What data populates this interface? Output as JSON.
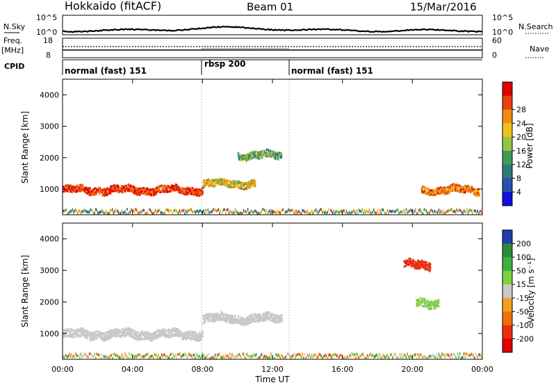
{
  "header": {
    "station": "Hokkaido (fitACF)",
    "beam": "Beam 01",
    "date": "15/Mar/2016"
  },
  "noise_panel": {
    "left_label": "N.Sky",
    "right_label": "N.Search",
    "left_ticks": [
      "10^5",
      "10^0"
    ],
    "right_ticks": [
      "10^5",
      "10^0"
    ]
  },
  "freq_panel": {
    "left_label_1": "Freq.",
    "left_label_2": "[MHz]",
    "right_label": "Nave",
    "left_ticks": [
      "18",
      "8"
    ],
    "right_ticks": [
      "60",
      "0"
    ]
  },
  "cpid": {
    "label": "CPID",
    "segments": [
      {
        "name": "normal (fast) 151",
        "start_hour": 0,
        "end_hour": 8
      },
      {
        "name": "rbsp 200",
        "start_hour": 8,
        "end_hour": 13
      },
      {
        "name": "normal (fast) 151",
        "start_hour": 13,
        "end_hour": 24
      }
    ]
  },
  "chart_data": [
    {
      "type": "heatmap",
      "title": "",
      "xlabel": "Time UT",
      "ylabel": "Slant Range [km]",
      "x_ticks": [
        "00:00",
        "04:00",
        "08:00",
        "12:00",
        "16:00",
        "20:00",
        "00:00"
      ],
      "xlim_hours": [
        0,
        24
      ],
      "y_ticks": [
        1000,
        2000,
        3000,
        4000
      ],
      "ylim": [
        180,
        4500
      ],
      "colorbar": {
        "label": "Power [dB]",
        "ticks": [
          "4",
          "8",
          "12",
          "16",
          "20",
          "24",
          "28"
        ],
        "range": [
          0,
          30
        ],
        "colors": [
          "#1010e0",
          "#2a52a8",
          "#2e7a78",
          "#3f9a55",
          "#9ac24a",
          "#f0c020",
          "#f08a10",
          "#e84010",
          "#e00000"
        ]
      },
      "echo_bands": [
        {
          "start_hour": 0,
          "end_hour": 8,
          "range_km": 1000,
          "value": 26
        },
        {
          "start_hour": 8,
          "end_hour": 11,
          "range_km": 1200,
          "value": 18
        },
        {
          "start_hour": 10,
          "end_hour": 12.5,
          "range_km": 2100,
          "value": 12
        },
        {
          "start_hour": 20.5,
          "end_hour": 23.8,
          "range_km": 1000,
          "value": 22
        }
      ]
    },
    {
      "type": "heatmap",
      "title": "",
      "xlabel": "Time UT",
      "ylabel": "Slant Range [km]",
      "x_ticks": [
        "00:00",
        "04:00",
        "08:00",
        "12:00",
        "16:00",
        "20:00",
        "00:00"
      ],
      "xlim_hours": [
        0,
        24
      ],
      "y_ticks": [
        1000,
        2000,
        3000,
        4000
      ],
      "ylim": [
        180,
        4500
      ],
      "colorbar": {
        "label": "Velocity [m s⁻¹]",
        "ticks": [
          "200",
          "100",
          "50",
          "15",
          "-15",
          "-50",
          "-100",
          "-200"
        ],
        "range": [
          -250,
          250
        ],
        "colors": [
          "#1f3fb0",
          "#2e8a3a",
          "#40b040",
          "#7ed040",
          "#c8c8c8",
          "#f0a020",
          "#f07010",
          "#e83010",
          "#e00000"
        ]
      },
      "echo_bands": [
        {
          "start_hour": 0,
          "end_hour": 8,
          "range_km": 1000,
          "value": 0
        },
        {
          "start_hour": 8,
          "end_hour": 12.5,
          "range_km": 1500,
          "value": 0
        },
        {
          "start_hour": 19.5,
          "end_hour": 21,
          "range_km": 3200,
          "value": -180
        },
        {
          "start_hour": 20.2,
          "end_hour": 21.5,
          "range_km": 2000,
          "value": 40
        }
      ]
    }
  ]
}
